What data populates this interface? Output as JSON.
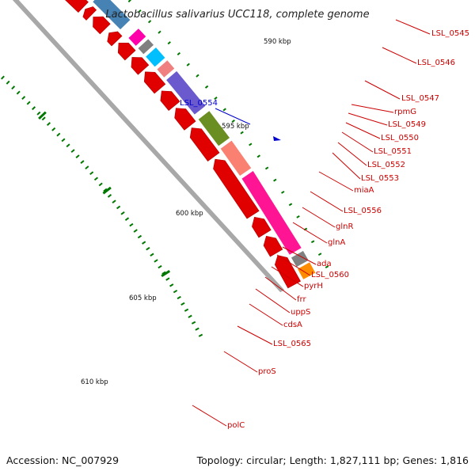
{
  "title": "Lactobacillus salivarius UCC118, complete genome",
  "footer": {
    "accession": "Accession: NC_007929",
    "topology": "Topology: circular; Length: 1,827,111 bp; Genes: 1,816"
  },
  "colors": {
    "cds": "#e00000",
    "outline": "#cc0000",
    "backbone_gray": "#a8a8a8",
    "tick": "#007700",
    "label_red": "#cc0000",
    "label_blue": "#0000cc"
  },
  "scale_labels": [
    "590 kbp",
    "595 kbp",
    "600 kbp",
    "605 kbp",
    "610 kbp"
  ],
  "gene_labels": [
    {
      "text": "LSL_0545",
      "color": "red"
    },
    {
      "text": "LSL_0546",
      "color": "red"
    },
    {
      "text": "LSL_0547",
      "color": "red"
    },
    {
      "text": "rpmG",
      "color": "red"
    },
    {
      "text": "LSL_0549",
      "color": "red"
    },
    {
      "text": "LSL_0550",
      "color": "red"
    },
    {
      "text": "LSL_0551",
      "color": "red"
    },
    {
      "text": "LSL_0552",
      "color": "red"
    },
    {
      "text": "LSL_0553",
      "color": "red"
    },
    {
      "text": "miaA",
      "color": "red"
    },
    {
      "text": "LSL_0556",
      "color": "red"
    },
    {
      "text": "glnR",
      "color": "red"
    },
    {
      "text": "glnA",
      "color": "red"
    },
    {
      "text": "ada",
      "color": "red"
    },
    {
      "text": "LSL_0560",
      "color": "red"
    },
    {
      "text": "pyrH",
      "color": "red"
    },
    {
      "text": "frr",
      "color": "red"
    },
    {
      "text": "uppS",
      "color": "red"
    },
    {
      "text": "cdsA",
      "color": "red"
    },
    {
      "text": "LSL_0565",
      "color": "red"
    },
    {
      "text": "proS",
      "color": "red"
    },
    {
      "text": "polC",
      "color": "red"
    },
    {
      "text": "LSL_0554",
      "color": "blue"
    }
  ],
  "cog_colors": [
    "#ff1493",
    "#ff69b4",
    "#f08080",
    "#0000ff",
    "#a9a9a9",
    "#00bfff",
    "#483d8b",
    "#6a5acd",
    "#ff8c00",
    "#4682b4",
    "#808080",
    "#6b8e23",
    "#fa8072",
    "#ff00aa"
  ]
}
